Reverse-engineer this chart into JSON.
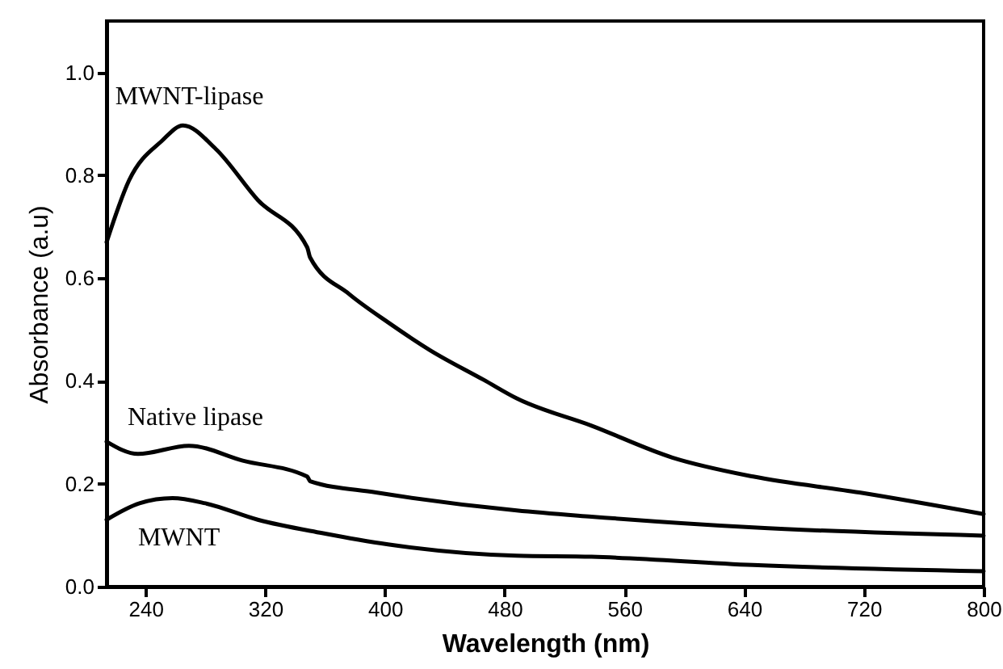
{
  "chart_data": {
    "type": "line",
    "xlabel": "Wavelength (nm)",
    "ylabel": "Absorbance (a.u)",
    "xlim": [
      214,
      800
    ],
    "ylim": [
      0,
      1.1
    ],
    "xticks": [
      240,
      320,
      400,
      480,
      560,
      640,
      720,
      800
    ],
    "yticks": [
      {
        "value": 0,
        "label": "0.0"
      },
      0.2,
      0.4,
      0.6,
      0.8,
      {
        "value": 1,
        "label": "1.0"
      }
    ],
    "grid": false,
    "marker": "none",
    "line_style": "solid",
    "series": [
      {
        "name": "MWNT-lipase",
        "color": "#000000",
        "x": [
          214,
          229,
          251,
          265,
          287,
          315,
          348,
          350,
          376,
          402,
          430,
          466,
          488,
          538,
          592,
          646,
          717,
          800
        ],
        "values": [
          0.67,
          0.79,
          0.867,
          0.897,
          0.851,
          0.752,
          0.66,
          0.64,
          0.569,
          0.514,
          0.46,
          0.402,
          0.366,
          0.313,
          0.251,
          0.214,
          0.183,
          0.141
        ]
      },
      {
        "name": "Native lipase",
        "color": "#000000",
        "x": [
          214,
          235,
          269,
          305,
          348,
          350,
          394,
          488,
          538,
          646,
          800
        ],
        "values": [
          0.282,
          0.258,
          0.274,
          0.245,
          0.214,
          0.205,
          0.183,
          0.148,
          0.136,
          0.115,
          0.099
        ]
      },
      {
        "name": "MWNT",
        "color": "#000000",
        "x": [
          214,
          236,
          258,
          280,
          315,
          358,
          402,
          488,
          538,
          646,
          800
        ],
        "values": [
          0.13,
          0.162,
          0.172,
          0.162,
          0.13,
          0.104,
          0.082,
          0.06,
          0.058,
          0.042,
          0.03
        ]
      }
    ]
  }
}
